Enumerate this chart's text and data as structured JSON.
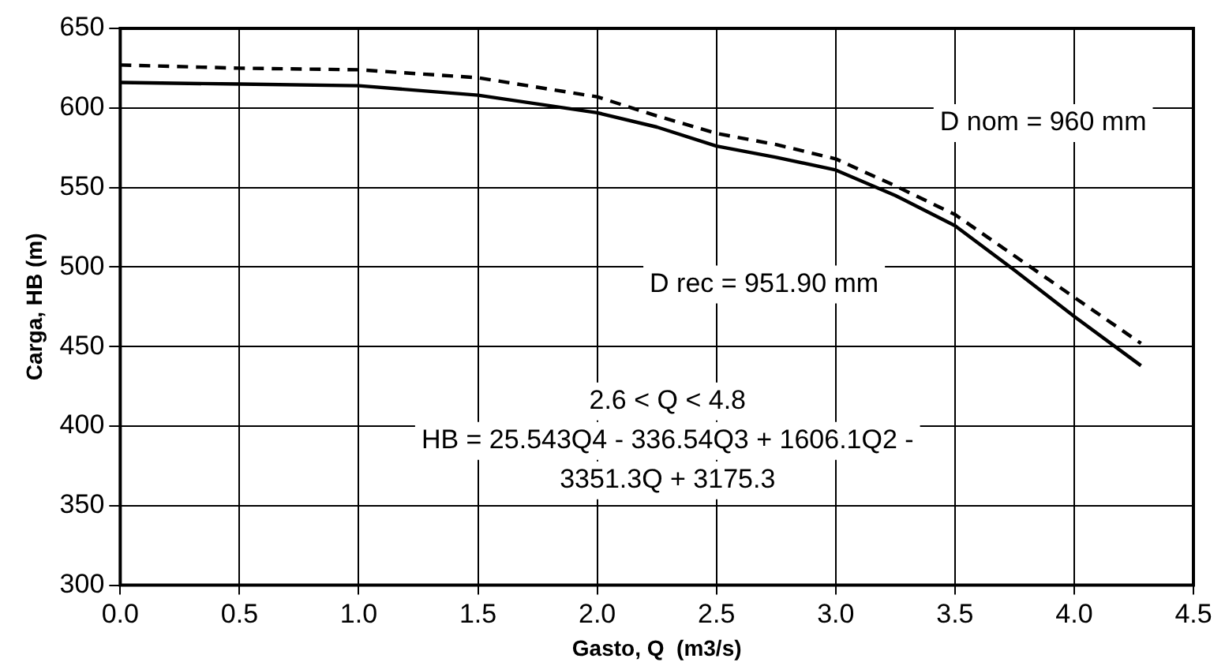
{
  "chart_data": {
    "type": "line",
    "xlabel": "Gasto, Q  (m3/s)",
    "ylabel": "Carga, HB (m)",
    "x": [
      0,
      0.5,
      1.0,
      1.5,
      2.0,
      2.25,
      2.5,
      2.75,
      3.0,
      3.25,
      3.5,
      3.75,
      4.0,
      4.28
    ],
    "series": [
      {
        "color": "#000000",
        "line_style": "solid",
        "values": [
          616,
          615,
          614,
          608,
          597,
          588,
          576,
          569,
          561,
          545,
          526,
          498,
          469,
          438
        ]
      },
      {
        "color": "#000000",
        "line_style": "dashed",
        "values": [
          627,
          625,
          624,
          619,
          607,
          595,
          584,
          577,
          568,
          551,
          533,
          507,
          481,
          452
        ]
      }
    ],
    "xlim": [
      0,
      4.5
    ],
    "xticks": [
      {
        "value": 0,
        "label": "0.0"
      },
      {
        "value": 0.5,
        "label": "0.5"
      },
      {
        "value": 1,
        "label": "1.0"
      },
      {
        "value": 1.5,
        "label": "1.5"
      },
      {
        "value": 2,
        "label": "2.0"
      },
      {
        "value": 2.5,
        "label": "2.5"
      },
      {
        "value": 3,
        "label": "3.0"
      },
      {
        "value": 3.5,
        "label": "3.5"
      },
      {
        "value": 4,
        "label": "4.0"
      },
      {
        "value": 4.5,
        "label": "4.5"
      }
    ],
    "ylim": [
      300,
      650
    ],
    "yticks": [
      300,
      350,
      400,
      450,
      500,
      550,
      600,
      650
    ],
    "grid": true,
    "legend": false,
    "marker": "none",
    "annotations": [
      "D nom = 960 mm",
      "D rec = 951.90 mm",
      "2.6 < Q < 4.8\nHB = 25.543Q4 - 336.54Q3 + 1606.1Q2 -\n3351.3Q + 3175.3"
    ]
  }
}
